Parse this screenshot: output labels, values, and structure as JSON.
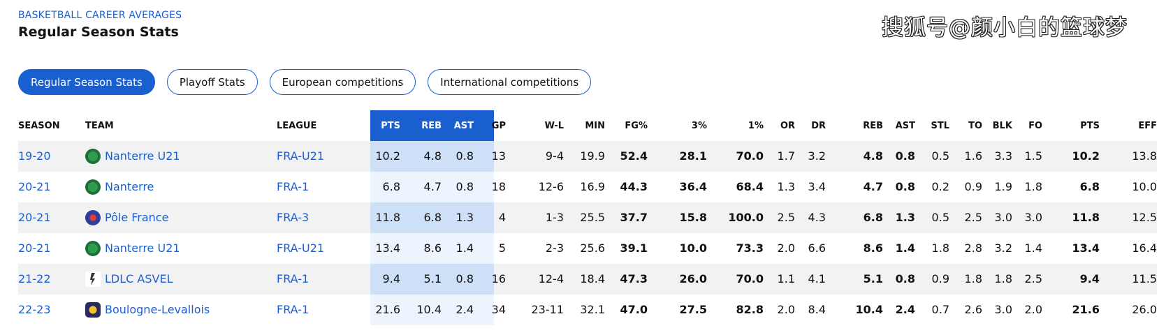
{
  "header": {
    "eyebrow": "BASKETBALL CAREER AVERAGES",
    "title": "Regular Season Stats"
  },
  "watermark": "搜狐号@颜小白的篮球梦",
  "tabs": [
    {
      "label": "Regular Season Stats",
      "active": true
    },
    {
      "label": "Playoff Stats",
      "active": false
    },
    {
      "label": "European competitions",
      "active": false
    },
    {
      "label": "International competitions",
      "active": false
    }
  ],
  "columns": [
    "SEASON",
    "TEAM",
    "LEAGUE",
    "PTS",
    "REB",
    "AST",
    "GP",
    "W-L",
    "MIN",
    "FG%",
    "3%",
    "1%",
    "OR",
    "DR",
    "REB",
    "AST",
    "STL",
    "TO",
    "BLK",
    "FO",
    "PTS",
    "EFF"
  ],
  "rows": [
    {
      "season": "19-20",
      "team": "Nanterre U21",
      "logo": "nanterre-logo",
      "league": "FRA-U21",
      "stats": [
        "10.2",
        "4.8",
        "0.8",
        "13",
        "9-4",
        "19.9",
        "52.4",
        "28.1",
        "70.0",
        "1.7",
        "3.2",
        "4.8",
        "0.8",
        "0.5",
        "1.6",
        "3.3",
        "1.5",
        "10.2",
        "13.8"
      ]
    },
    {
      "season": "20-21",
      "team": "Nanterre",
      "logo": "nanterre-logo",
      "league": "FRA-1",
      "stats": [
        "6.8",
        "4.7",
        "0.8",
        "18",
        "12-6",
        "16.9",
        "44.3",
        "36.4",
        "68.4",
        "1.3",
        "3.4",
        "4.7",
        "0.8",
        "0.2",
        "0.9",
        "1.9",
        "1.8",
        "6.8",
        "10.0"
      ]
    },
    {
      "season": "20-21",
      "team": "Pôle France",
      "logo": "pole-france-logo",
      "league": "FRA-3",
      "stats": [
        "11.8",
        "6.8",
        "1.3",
        "4",
        "1-3",
        "25.5",
        "37.7",
        "15.8",
        "100.0",
        "2.5",
        "4.3",
        "6.8",
        "1.3",
        "0.5",
        "2.5",
        "3.0",
        "3.0",
        "11.8",
        "12.5"
      ]
    },
    {
      "season": "20-21",
      "team": "Nanterre U21",
      "logo": "nanterre-logo",
      "league": "FRA-U21",
      "stats": [
        "13.4",
        "8.6",
        "1.4",
        "5",
        "2-3",
        "25.6",
        "39.1",
        "10.0",
        "73.3",
        "2.0",
        "6.6",
        "8.6",
        "1.4",
        "1.8",
        "2.8",
        "3.2",
        "1.4",
        "13.4",
        "16.4"
      ]
    },
    {
      "season": "21-22",
      "team": "LDLC ASVEL",
      "logo": "asvel-logo",
      "league": "FRA-1",
      "stats": [
        "9.4",
        "5.1",
        "0.8",
        "16",
        "12-4",
        "18.4",
        "47.3",
        "26.0",
        "70.0",
        "1.1",
        "4.1",
        "5.1",
        "0.8",
        "0.9",
        "1.8",
        "1.8",
        "2.5",
        "9.4",
        "11.5"
      ]
    },
    {
      "season": "22-23",
      "team": "Boulogne-Levallois",
      "logo": "boulogne-logo",
      "league": "FRA-1",
      "stats": [
        "21.6",
        "10.4",
        "2.4",
        "34",
        "23-11",
        "32.1",
        "47.0",
        "27.5",
        "82.8",
        "2.0",
        "8.4",
        "10.4",
        "2.4",
        "0.7",
        "2.6",
        "3.0",
        "2.0",
        "21.6",
        "26.0"
      ]
    }
  ],
  "colors": {
    "accent": "#1a5fd0",
    "highlight_bg": "#dde9fa",
    "row_alt": "#f2f2f2"
  }
}
